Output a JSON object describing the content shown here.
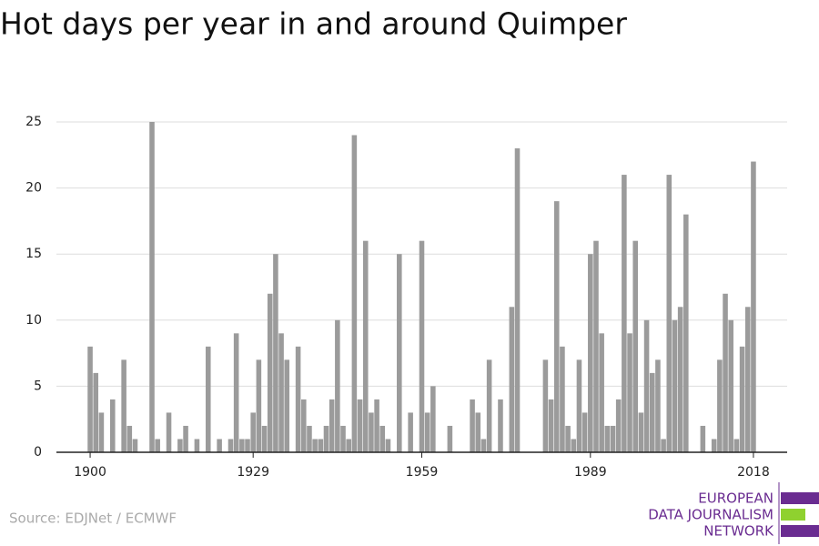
{
  "chart_data": {
    "type": "bar",
    "title": "Hot days per year in and around Quimper",
    "source": "Source: EDJNet / ECMWF",
    "logo": [
      "EUROPEAN",
      "DATA JOURNALISM",
      "NETWORK"
    ],
    "color": "#9b9b9b",
    "x": [
      1900,
      1901,
      1902,
      1903,
      1904,
      1905,
      1906,
      1907,
      1908,
      1909,
      1910,
      1911,
      1912,
      1913,
      1914,
      1915,
      1916,
      1917,
      1918,
      1919,
      1920,
      1921,
      1922,
      1923,
      1924,
      1925,
      1926,
      1927,
      1928,
      1929,
      1930,
      1931,
      1932,
      1933,
      1934,
      1935,
      1936,
      1937,
      1938,
      1939,
      1940,
      1941,
      1942,
      1943,
      1944,
      1945,
      1946,
      1947,
      1948,
      1949,
      1950,
      1951,
      1952,
      1953,
      1954,
      1955,
      1956,
      1957,
      1958,
      1959,
      1960,
      1961,
      1962,
      1963,
      1964,
      1965,
      1966,
      1967,
      1968,
      1969,
      1970,
      1971,
      1972,
      1973,
      1974,
      1975,
      1976,
      1977,
      1978,
      1979,
      1980,
      1981,
      1982,
      1983,
      1984,
      1985,
      1986,
      1987,
      1988,
      1989,
      1990,
      1991,
      1992,
      1993,
      1994,
      1995,
      1996,
      1997,
      1998,
      1999,
      2000,
      2001,
      2002,
      2003,
      2004,
      2005,
      2006,
      2007,
      2008,
      2009,
      2010,
      2011,
      2012,
      2013,
      2014,
      2015,
      2016,
      2017,
      2018
    ],
    "values": [
      8,
      6,
      3,
      0,
      4,
      0,
      7,
      2,
      1,
      0,
      0,
      25,
      1,
      0,
      3,
      0,
      1,
      2,
      0,
      1,
      0,
      8,
      0,
      1,
      0,
      1,
      9,
      1,
      1,
      3,
      7,
      2,
      12,
      15,
      9,
      7,
      0,
      8,
      4,
      2,
      1,
      1,
      2,
      4,
      10,
      2,
      1,
      24,
      4,
      16,
      3,
      4,
      2,
      1,
      0,
      15,
      0,
      3,
      0,
      16,
      3,
      5,
      0,
      0,
      2,
      0,
      0,
      0,
      4,
      3,
      1,
      7,
      0,
      4,
      0,
      11,
      23,
      0,
      0,
      0,
      0,
      7,
      4,
      19,
      8,
      2,
      1,
      7,
      3,
      15,
      16,
      9,
      2,
      2,
      4,
      21,
      9,
      16,
      3,
      10,
      6,
      7,
      1,
      21,
      10,
      11,
      18,
      0,
      0,
      2,
      0,
      1,
      7,
      12,
      10,
      1,
      8,
      11,
      22
    ],
    "xlim": [
      1894,
      2024
    ],
    "xticks": [
      1900,
      1929,
      1959,
      1989,
      2018
    ],
    "ylim": [
      0,
      25
    ],
    "yticks": [
      0,
      5,
      10,
      15,
      20,
      25
    ],
    "grid": true
  }
}
